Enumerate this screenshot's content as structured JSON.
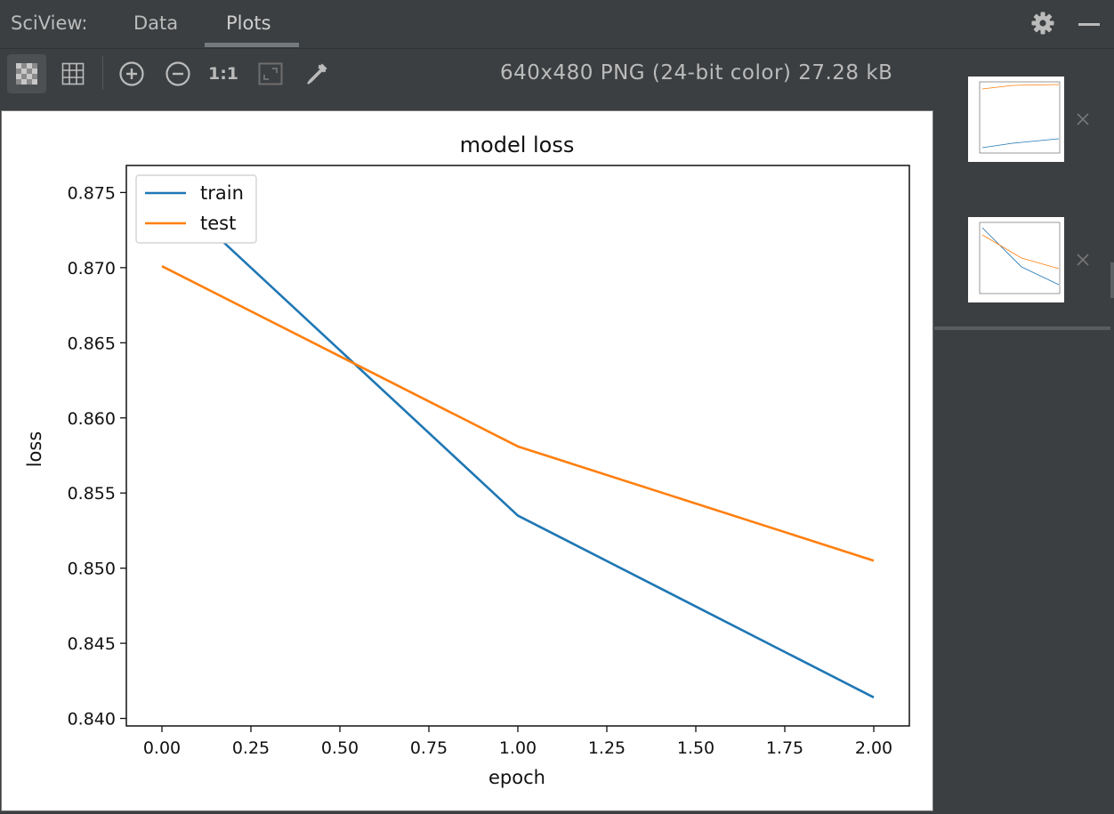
{
  "header": {
    "title": "SciView:",
    "tabs": [
      {
        "label": "Data"
      },
      {
        "label": "Plots"
      }
    ],
    "active_tab": "Plots"
  },
  "toolbar": {
    "tools": [
      {
        "icon": "transparent-background-icon",
        "selected": true
      },
      {
        "icon": "grid-icon"
      },
      {
        "icon": "zoom-in-icon"
      },
      {
        "icon": "zoom-out-icon"
      },
      {
        "icon": "actual-size-icon",
        "label": "1:1"
      },
      {
        "icon": "fit-window-icon"
      },
      {
        "icon": "color-picker-icon"
      }
    ],
    "image_info": "640x480 PNG (24-bit color) 27.28 kB"
  },
  "chart_data": {
    "type": "line",
    "title": "model loss",
    "xlabel": "epoch",
    "ylabel": "loss",
    "x": [
      0,
      1,
      2
    ],
    "xlim": [
      -0.1,
      2.1
    ],
    "ylim": [
      0.8395,
      0.8768
    ],
    "xticks": [
      "0.00",
      "0.25",
      "0.50",
      "0.75",
      "1.00",
      "1.25",
      "1.50",
      "1.75",
      "2.00"
    ],
    "yticks": [
      "0.840",
      "0.845",
      "0.850",
      "0.855",
      "0.860",
      "0.865",
      "0.870",
      "0.875"
    ],
    "legend_position": "upper-left",
    "series": [
      {
        "name": "train",
        "color": "#1f77b4",
        "values": [
          0.8755,
          0.8535,
          0.8414
        ]
      },
      {
        "name": "test",
        "color": "#ff7f0e",
        "values": [
          0.8701,
          0.8581,
          0.8505
        ]
      }
    ]
  },
  "side_panel": {
    "thumbnails": [
      {
        "icon": "plot-thumbnail-icon",
        "close_icon": "close-icon"
      },
      {
        "icon": "plot-thumbnail-icon",
        "close_icon": "close-icon"
      }
    ]
  }
}
